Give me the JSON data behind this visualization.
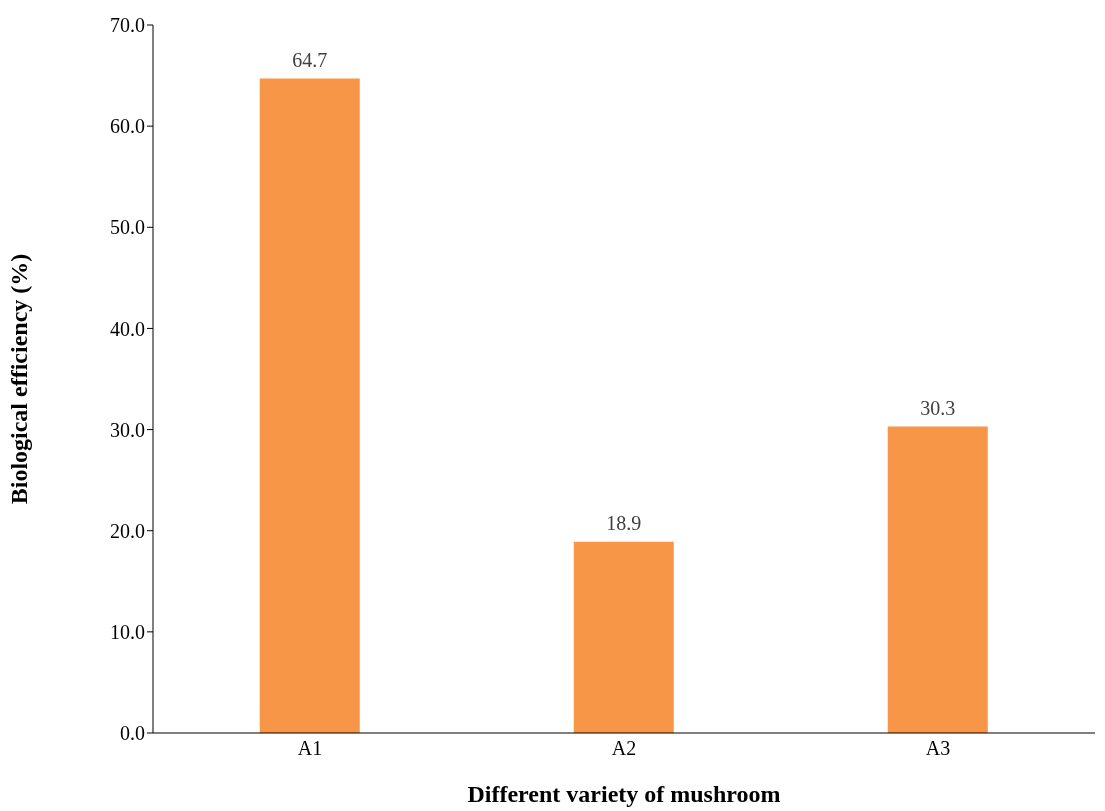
{
  "chart_data": {
    "type": "bar",
    "xlabel": "Different variety of mushroom",
    "ylabel": "Biological efficiency (%)",
    "categories": [
      "A1",
      "A2",
      "A3"
    ],
    "values": [
      64.7,
      18.9,
      30.3
    ],
    "color": "#f79646",
    "ylim": [
      0,
      70
    ],
    "yticks": [
      {
        "value": 0,
        "label": "0.0"
      },
      {
        "value": 10,
        "label": "10.0"
      },
      {
        "value": 20,
        "label": "20.0"
      },
      {
        "value": 30,
        "label": "30.0"
      },
      {
        "value": 40,
        "label": "40.0"
      },
      {
        "value": 50,
        "label": "50.0"
      },
      {
        "value": 60,
        "label": "60.0"
      },
      {
        "value": 70,
        "label": "70.0"
      }
    ],
    "data_labels": true,
    "grid": false,
    "legend": false
  }
}
